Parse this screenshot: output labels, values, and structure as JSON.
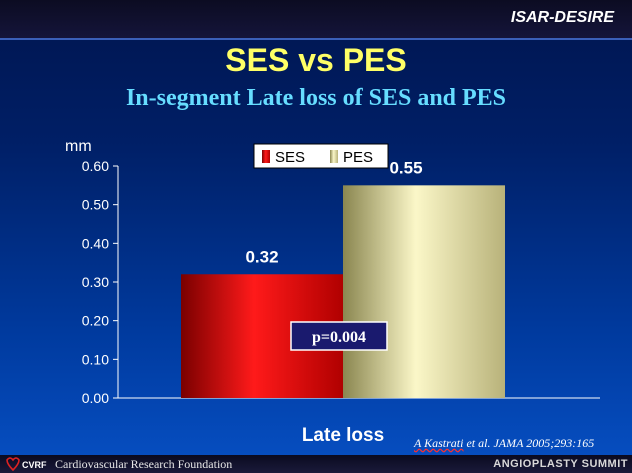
{
  "slide": {
    "brand": "ISAR-DESIRE",
    "title": "SES vs PES",
    "subtitle": "In-segment Late loss of SES and PES",
    "citation_author": "A Kastrati",
    "citation_rest": " et al. JAMA 2005;293:165",
    "footer_left": "Cardiovascular Research Foundation",
    "footer_logo_text": "CVRF",
    "footer_right": "ANGIOPLASTY SUMMIT"
  },
  "chart_data": {
    "type": "bar",
    "categories": [
      "Late loss"
    ],
    "series": [
      {
        "name": "SES",
        "values": [
          0.32
        ],
        "color": "#dd0000"
      },
      {
        "name": "PES",
        "values": [
          0.55
        ],
        "color": "#e9e3a4"
      }
    ],
    "data_labels": [
      "0.32",
      "0.55"
    ],
    "ylabel": "mm",
    "xlabel": "Late loss",
    "ylim": [
      0,
      0.6
    ],
    "yticks": [
      "0.00",
      "0.10",
      "0.20",
      "0.30",
      "0.40",
      "0.50",
      "0.60"
    ],
    "annotation": "p=0.004",
    "legend_position": "top-center",
    "grid": false
  }
}
